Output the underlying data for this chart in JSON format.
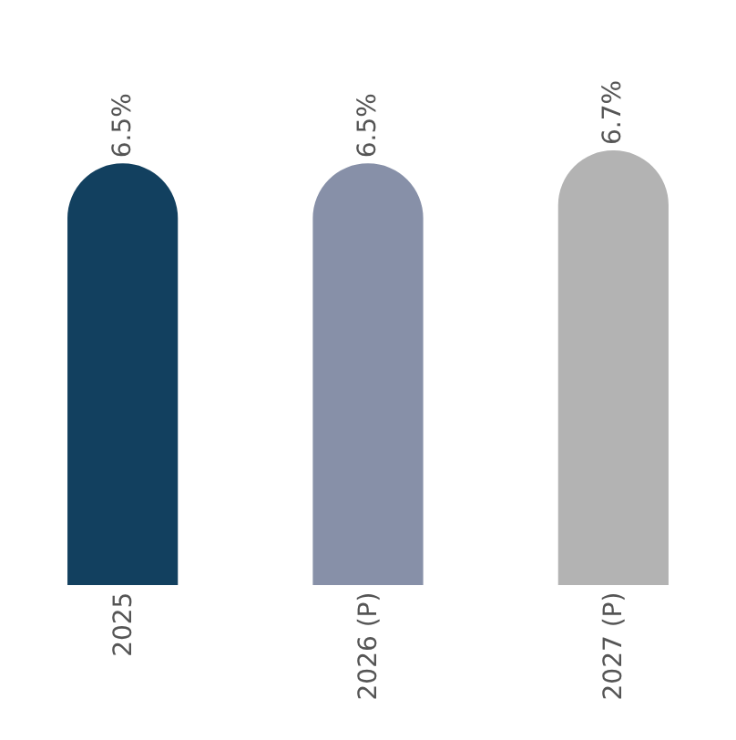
{
  "chart_data": {
    "type": "bar",
    "categories": [
      "2025",
      "2026 (P)",
      "2027 (P)"
    ],
    "values": [
      6.5,
      6.5,
      6.7
    ],
    "value_labels": [
      "6.5%",
      "6.5%",
      "6.7%"
    ],
    "colors": [
      "#12405f",
      "#8790a8",
      "#b3b3b3"
    ]
  }
}
